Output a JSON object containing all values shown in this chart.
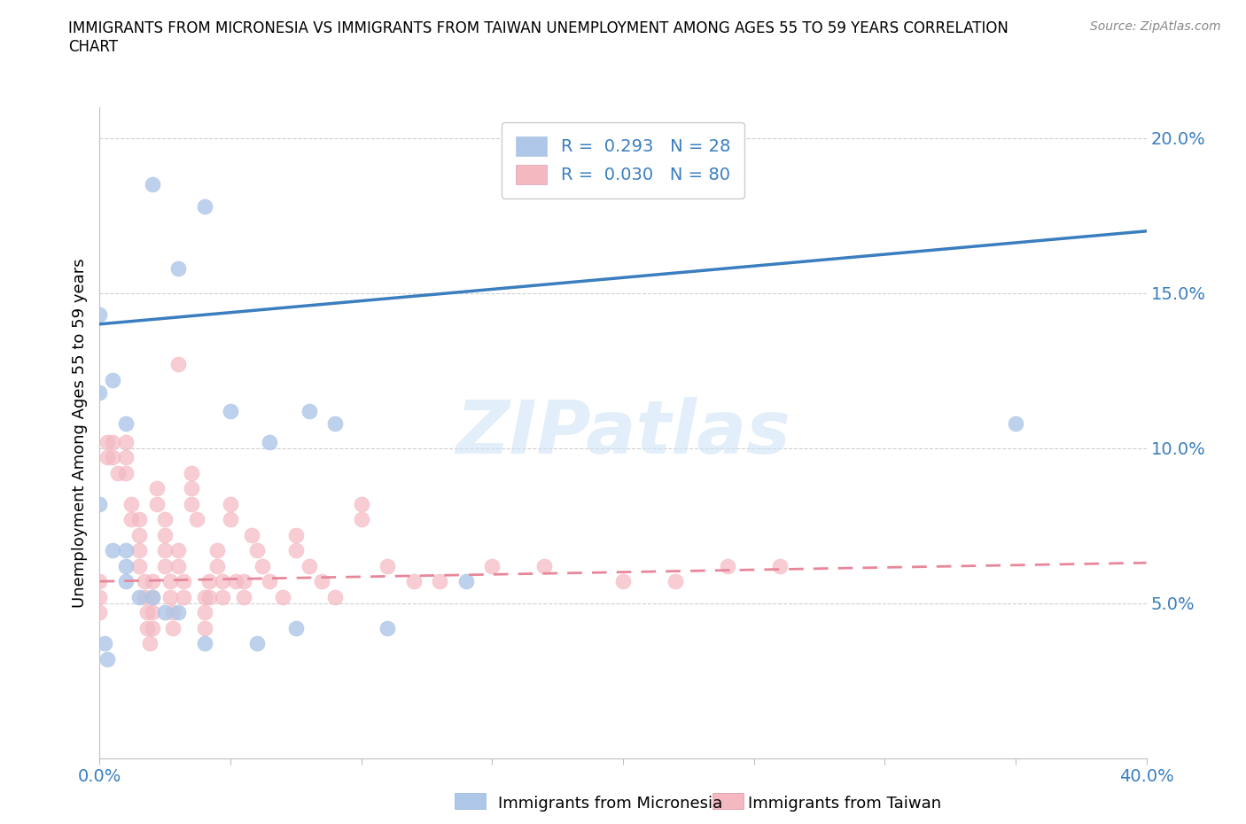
{
  "title": "IMMIGRANTS FROM MICRONESIA VS IMMIGRANTS FROM TAIWAN UNEMPLOYMENT AMONG AGES 55 TO 59 YEARS CORRELATION\nCHART",
  "source": "Source: ZipAtlas.com",
  "ylabel": "Unemployment Among Ages 55 to 59 years",
  "xlim": [
    0.0,
    0.4
  ],
  "ylim": [
    0.0,
    0.21
  ],
  "xticks": [
    0.0,
    0.05,
    0.1,
    0.15,
    0.2,
    0.25,
    0.3,
    0.35,
    0.4
  ],
  "yticks": [
    0.0,
    0.05,
    0.1,
    0.15,
    0.2
  ],
  "micronesia_color": "#aec6e8",
  "taiwan_color": "#f4b8c1",
  "micronesia_R": 0.293,
  "micronesia_N": 28,
  "taiwan_R": 0.03,
  "taiwan_N": 80,
  "micronesia_line_color": "#3a7ebf",
  "taiwan_line_color": "#e8869a",
  "watermark": "ZIPatlas",
  "micro_line_x0": 0.0,
  "micro_line_y0": 0.14,
  "micro_line_x1": 0.4,
  "micro_line_y1": 0.17,
  "taiwan_line_x0": 0.0,
  "taiwan_line_y0": 0.057,
  "taiwan_line_x1": 0.4,
  "taiwan_line_y1": 0.063,
  "micronesia_x": [
    0.02,
    0.04,
    0.03,
    0.0,
    0.0,
    0.005,
    0.01,
    0.05,
    0.08,
    0.09,
    0.065,
    0.0,
    0.005,
    0.01,
    0.01,
    0.01,
    0.015,
    0.02,
    0.025,
    0.03,
    0.04,
    0.06,
    0.075,
    0.002,
    0.003,
    0.14,
    0.35,
    0.11
  ],
  "micronesia_y": [
    0.185,
    0.178,
    0.158,
    0.143,
    0.118,
    0.122,
    0.108,
    0.112,
    0.112,
    0.108,
    0.102,
    0.082,
    0.067,
    0.067,
    0.062,
    0.057,
    0.052,
    0.052,
    0.047,
    0.047,
    0.037,
    0.037,
    0.042,
    0.037,
    0.032,
    0.057,
    0.108,
    0.042
  ],
  "taiwan_x": [
    0.0,
    0.0,
    0.0,
    0.003,
    0.003,
    0.005,
    0.005,
    0.007,
    0.01,
    0.01,
    0.01,
    0.012,
    0.012,
    0.015,
    0.015,
    0.015,
    0.015,
    0.017,
    0.017,
    0.018,
    0.018,
    0.019,
    0.02,
    0.02,
    0.02,
    0.02,
    0.022,
    0.022,
    0.025,
    0.025,
    0.025,
    0.025,
    0.027,
    0.027,
    0.028,
    0.028,
    0.03,
    0.03,
    0.03,
    0.032,
    0.032,
    0.035,
    0.035,
    0.035,
    0.037,
    0.04,
    0.04,
    0.04,
    0.042,
    0.042,
    0.045,
    0.045,
    0.047,
    0.047,
    0.05,
    0.05,
    0.052,
    0.055,
    0.055,
    0.058,
    0.06,
    0.062,
    0.065,
    0.07,
    0.075,
    0.075,
    0.08,
    0.085,
    0.09,
    0.1,
    0.1,
    0.11,
    0.12,
    0.13,
    0.15,
    0.17,
    0.2,
    0.22,
    0.24,
    0.26
  ],
  "taiwan_y": [
    0.057,
    0.052,
    0.047,
    0.102,
    0.097,
    0.102,
    0.097,
    0.092,
    0.102,
    0.097,
    0.092,
    0.077,
    0.082,
    0.077,
    0.072,
    0.067,
    0.062,
    0.057,
    0.052,
    0.047,
    0.042,
    0.037,
    0.057,
    0.052,
    0.047,
    0.042,
    0.087,
    0.082,
    0.077,
    0.072,
    0.067,
    0.062,
    0.057,
    0.052,
    0.047,
    0.042,
    0.127,
    0.067,
    0.062,
    0.057,
    0.052,
    0.092,
    0.087,
    0.082,
    0.077,
    0.052,
    0.047,
    0.042,
    0.057,
    0.052,
    0.067,
    0.062,
    0.057,
    0.052,
    0.082,
    0.077,
    0.057,
    0.057,
    0.052,
    0.072,
    0.067,
    0.062,
    0.057,
    0.052,
    0.072,
    0.067,
    0.062,
    0.057,
    0.052,
    0.082,
    0.077,
    0.062,
    0.057,
    0.057,
    0.062,
    0.062,
    0.057,
    0.057,
    0.062,
    0.062
  ]
}
